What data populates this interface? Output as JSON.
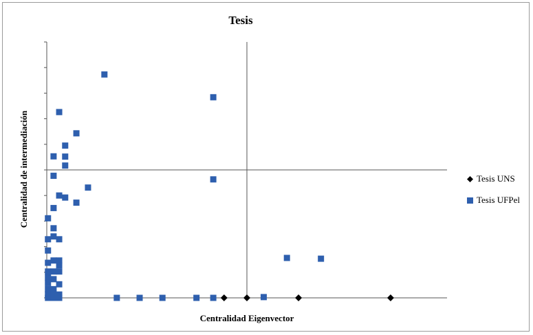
{
  "chart_data": {
    "type": "scatter",
    "title": "Tesis",
    "xlabel": "Centralidad Eigenvector",
    "ylabel": "Centralidad de intermediación",
    "xlim": [
      0,
      1
    ],
    "ylim": [
      0,
      1
    ],
    "quadrant_lines": {
      "x": 0.5,
      "y": 0.5
    },
    "legend_position": "right",
    "series": [
      {
        "name": "Tesis UNS",
        "marker": "diamond",
        "color": "#000000",
        "points": [
          [
            0.443,
            0.0
          ],
          [
            0.5,
            0.0
          ],
          [
            0.629,
            0.0
          ],
          [
            0.859,
            0.0
          ]
        ]
      },
      {
        "name": "Tesis UFPel",
        "marker": "square",
        "color": "#2e5fae",
        "points": [
          [
            0.144,
            0.873
          ],
          [
            0.416,
            0.784
          ],
          [
            0.031,
            0.726
          ],
          [
            0.074,
            0.643
          ],
          [
            0.046,
            0.595
          ],
          [
            0.017,
            0.553
          ],
          [
            0.046,
            0.552
          ],
          [
            0.046,
            0.517
          ],
          [
            0.017,
            0.477
          ],
          [
            0.416,
            0.463
          ],
          [
            0.103,
            0.431
          ],
          [
            0.031,
            0.4
          ],
          [
            0.046,
            0.392
          ],
          [
            0.074,
            0.372
          ],
          [
            0.017,
            0.351
          ],
          [
            0.003,
            0.311
          ],
          [
            0.017,
            0.272
          ],
          [
            0.017,
            0.24
          ],
          [
            0.003,
            0.229
          ],
          [
            0.031,
            0.229
          ],
          [
            0.003,
            0.185
          ],
          [
            0.031,
            0.146
          ],
          [
            0.017,
            0.146
          ],
          [
            0.003,
            0.137
          ],
          [
            0.031,
            0.127
          ],
          [
            0.003,
            0.103
          ],
          [
            0.031,
            0.103
          ],
          [
            0.017,
            0.103
          ],
          [
            0.003,
            0.08
          ],
          [
            0.017,
            0.073
          ],
          [
            0.003,
            0.058
          ],
          [
            0.031,
            0.053
          ],
          [
            0.003,
            0.034
          ],
          [
            0.017,
            0.034
          ],
          [
            0.003,
            0.013
          ],
          [
            0.017,
            0.013
          ],
          [
            0.031,
            0.013
          ],
          [
            0.003,
            0.0
          ],
          [
            0.017,
            0.0
          ],
          [
            0.031,
            0.0
          ],
          [
            0.175,
            0.0
          ],
          [
            0.232,
            0.0
          ],
          [
            0.289,
            0.0
          ],
          [
            0.374,
            0.0
          ],
          [
            0.416,
            0.0
          ],
          [
            0.542,
            0.003
          ],
          [
            0.6,
            0.156
          ],
          [
            0.685,
            0.153
          ]
        ]
      }
    ]
  }
}
